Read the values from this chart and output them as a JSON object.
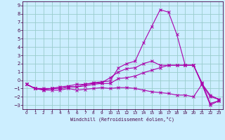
{
  "xlabel": "Windchill (Refroidissement éolien,°C)",
  "background_color": "#cceeff",
  "grid_color": "#99cccc",
  "line_color": "#aa00aa",
  "xlim": [
    -0.5,
    23.5
  ],
  "ylim": [
    -3.5,
    9.5
  ],
  "xticks": [
    0,
    1,
    2,
    3,
    4,
    5,
    6,
    7,
    8,
    9,
    10,
    11,
    12,
    13,
    14,
    15,
    16,
    17,
    18,
    19,
    20,
    21,
    22,
    23
  ],
  "yticks": [
    -3,
    -2,
    -1,
    0,
    1,
    2,
    3,
    4,
    5,
    6,
    7,
    8,
    9
  ],
  "series": [
    {
      "x": [
        0,
        1,
        2,
        3,
        4,
        5,
        6,
        7,
        8,
        9,
        10,
        11,
        12,
        13,
        14,
        15,
        16,
        17,
        18,
        19,
        20,
        21,
        22,
        23
      ],
      "y": [
        -0.5,
        -1.0,
        -1.0,
        -1.0,
        -0.8,
        -0.7,
        -0.5,
        -0.5,
        -0.3,
        -0.2,
        -0.1,
        1.5,
        2.0,
        2.3,
        4.5,
        6.5,
        8.5,
        8.2,
        5.5,
        1.8,
        1.8,
        -0.3,
        -2.8,
        -2.5
      ]
    },
    {
      "x": [
        0,
        1,
        2,
        3,
        4,
        5,
        6,
        7,
        8,
        9,
        10,
        11,
        12,
        13,
        14,
        15,
        16,
        17,
        18,
        19,
        20,
        21,
        22,
        23
      ],
      "y": [
        -0.5,
        -1.0,
        -1.1,
        -1.0,
        -1.0,
        -0.8,
        -0.8,
        -0.5,
        -0.4,
        -0.3,
        0.3,
        1.0,
        1.4,
        1.5,
        2.0,
        2.3,
        1.8,
        1.8,
        1.8,
        1.8,
        1.8,
        -0.4,
        -1.8,
        -2.3
      ]
    },
    {
      "x": [
        0,
        1,
        2,
        3,
        4,
        5,
        6,
        7,
        8,
        9,
        10,
        11,
        12,
        13,
        14,
        15,
        16,
        17,
        18,
        19,
        20,
        21,
        22,
        23
      ],
      "y": [
        -0.5,
        -1.0,
        -1.1,
        -1.0,
        -1.0,
        -0.8,
        -0.8,
        -0.7,
        -0.5,
        -0.4,
        -0.4,
        0.2,
        0.3,
        0.5,
        0.9,
        1.2,
        1.5,
        1.8,
        1.8,
        1.8,
        1.8,
        -0.5,
        -2.0,
        -2.3
      ]
    },
    {
      "x": [
        0,
        1,
        2,
        3,
        4,
        5,
        6,
        7,
        8,
        9,
        10,
        11,
        12,
        13,
        14,
        15,
        16,
        17,
        18,
        19,
        20,
        21,
        22,
        23
      ],
      "y": [
        -0.5,
        -1.0,
        -1.2,
        -1.2,
        -1.2,
        -1.0,
        -1.2,
        -1.1,
        -1.0,
        -0.9,
        -1.0,
        -0.9,
        -0.9,
        -1.0,
        -1.2,
        -1.4,
        -1.5,
        -1.6,
        -1.8,
        -1.8,
        -2.0,
        -0.5,
        -3.0,
        -2.5
      ]
    }
  ]
}
